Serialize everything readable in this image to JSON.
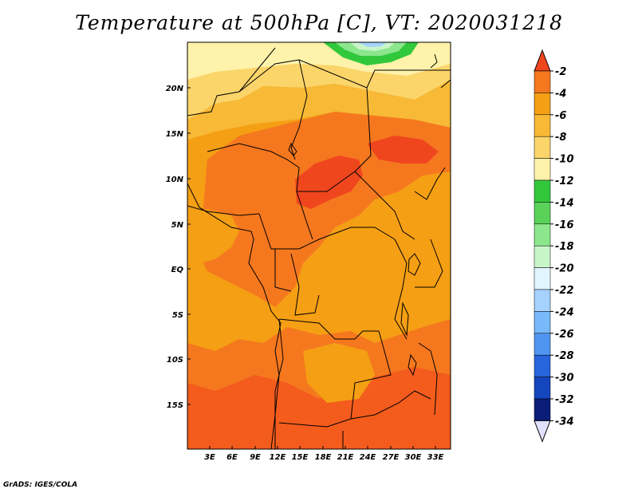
{
  "title": "Temperature at 500hPa [C], VT: 2020031218",
  "credit": "GrADS: IGES/COLA",
  "map": {
    "lat_labels": [
      "20N",
      "15N",
      "10N",
      "5N",
      "EQ",
      "5S",
      "10S",
      "15S"
    ],
    "lon_labels": [
      "3E",
      "6E",
      "9E",
      "12E",
      "15E",
      "18E",
      "21E",
      "24E",
      "27E",
      "30E",
      "33E"
    ]
  },
  "colorbar": {
    "labels": [
      "-2",
      "-4",
      "-6",
      "-8",
      "-10",
      "-12",
      "-14",
      "-16",
      "-18",
      "-20",
      "-22",
      "-24",
      "-26",
      "-28",
      "-30",
      "-32",
      "-34"
    ],
    "colors": [
      "#f0461e",
      "#f5781e",
      "#f59f14",
      "#f7b936",
      "#fbd56a",
      "#fff2aa",
      "#32c83c",
      "#5ad25a",
      "#8ce68c",
      "#c8f5c8",
      "#e1f5ff",
      "#a5d2ff",
      "#78b9fa",
      "#5096f0",
      "#2864dc",
      "#1446be",
      "#0a1e78",
      "#e1e1ff"
    ]
  }
}
